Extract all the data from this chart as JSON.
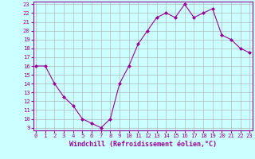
{
  "x": [
    0,
    1,
    2,
    3,
    4,
    5,
    6,
    7,
    8,
    9,
    10,
    11,
    12,
    13,
    14,
    15,
    16,
    17,
    18,
    19,
    20,
    21,
    22,
    23
  ],
  "y": [
    16,
    16,
    14,
    12.5,
    11.5,
    10,
    9.5,
    9,
    10,
    14,
    16,
    18.5,
    20,
    21.5,
    22,
    21.5,
    23,
    21.5,
    22,
    22.5,
    19.5,
    19,
    18,
    17.5
  ],
  "line_color": "#990099",
  "marker": "D",
  "marker_size": 2.0,
  "bg_color": "#ccffff",
  "grid_color": "#aaaaaa",
  "xlabel": "Windchill (Refroidissement éolien,°C)",
  "ylim_min": 8.7,
  "ylim_max": 23.3,
  "xlim_min": -0.3,
  "xlim_max": 23.3,
  "yticks": [
    9,
    10,
    11,
    12,
    13,
    14,
    15,
    16,
    17,
    18,
    19,
    20,
    21,
    22,
    23
  ],
  "xticks": [
    0,
    1,
    2,
    3,
    4,
    5,
    6,
    7,
    8,
    9,
    10,
    11,
    12,
    13,
    14,
    15,
    16,
    17,
    18,
    19,
    20,
    21,
    22,
    23
  ],
  "tick_color": "#990099",
  "label_color": "#990099",
  "xlabel_fontsize": 6.0,
  "tick_fontsize": 5.2,
  "spine_color": "#990099",
  "linewidth": 0.8
}
